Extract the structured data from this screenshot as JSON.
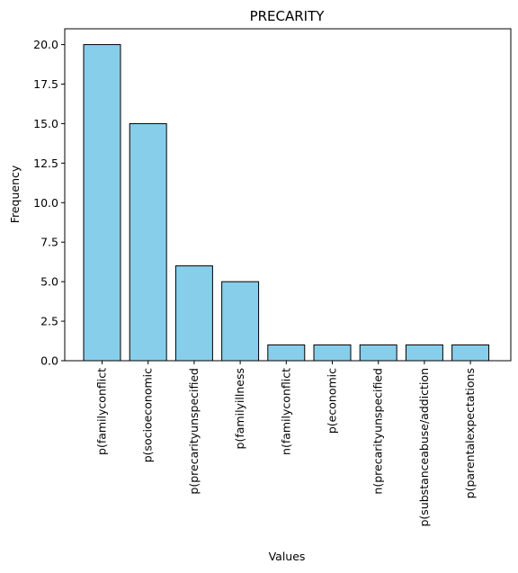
{
  "chart_data": {
    "type": "bar",
    "title": "PRECARITY",
    "xlabel": "Values",
    "ylabel": "Frequency",
    "categories": [
      "p(familyconflict",
      "p(socioeconomic",
      "p(precarityunspecified",
      "p(familyillness",
      "n(familyconflict",
      "p(economic",
      "n(precarityunspecified",
      "p(substanceabuse/addiction",
      "p(parentalexpectations"
    ],
    "values": [
      20,
      15,
      6,
      5,
      1,
      1,
      1,
      1,
      1
    ],
    "ylim": [
      0,
      21
    ],
    "yticks": [
      "0.0",
      "2.5",
      "5.0",
      "7.5",
      "10.0",
      "12.5",
      "15.0",
      "17.5",
      "20.0"
    ],
    "bar_color": "#87ceeb",
    "edge_color": "#000000",
    "grid": false,
    "legend": "none"
  }
}
